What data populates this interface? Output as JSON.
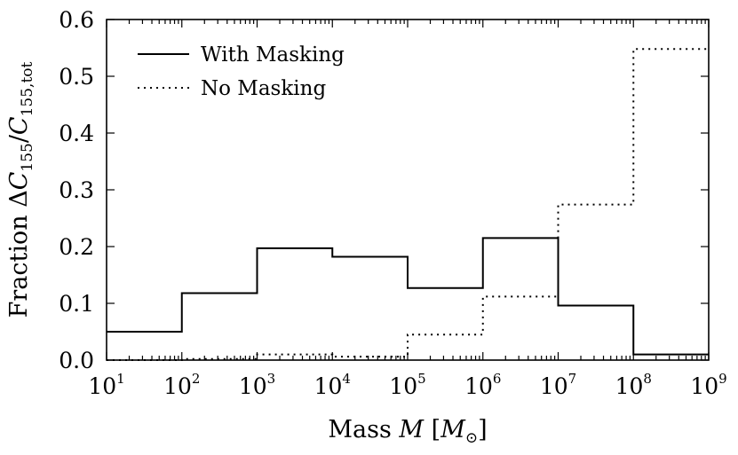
{
  "chart_data": {
    "type": "histogram-step",
    "xscale": "log",
    "xlim_exp": [
      1,
      9
    ],
    "ylim": [
      0,
      0.6
    ],
    "bin_edge_exponents": [
      1,
      2,
      3,
      4,
      5,
      6,
      7,
      8,
      9
    ],
    "x_tick_base": "10",
    "x_tick_exponents": [
      "1",
      "2",
      "3",
      "4",
      "5",
      "6",
      "7",
      "8",
      "9"
    ],
    "y_ticks": [
      0.0,
      0.1,
      0.2,
      0.3,
      0.4,
      0.5,
      0.6
    ],
    "y_tick_labels": [
      "0.0",
      "0.1",
      "0.2",
      "0.3",
      "0.4",
      "0.5",
      "0.6"
    ],
    "xlabel": {
      "prefix": "Mass ",
      "var": "M",
      "open": " [",
      "unit": "M",
      "unit_sub": "⊙",
      "close": "]"
    },
    "ylabel": {
      "prefix": "Fraction ",
      "delta": "Δ",
      "var1": "C",
      "sub1": "155",
      "slash": "/",
      "var2": "C",
      "sub2": "155,tot"
    },
    "legend_position": "top-left",
    "series": [
      {
        "name": "With Masking",
        "style": "solid",
        "values": [
          0.05,
          0.118,
          0.197,
          0.182,
          0.127,
          0.215,
          0.096,
          0.01
        ]
      },
      {
        "name": "No Masking",
        "style": "dotted",
        "values": [
          0.0,
          0.002,
          0.01,
          0.006,
          0.045,
          0.112,
          0.274,
          0.548
        ]
      }
    ]
  }
}
